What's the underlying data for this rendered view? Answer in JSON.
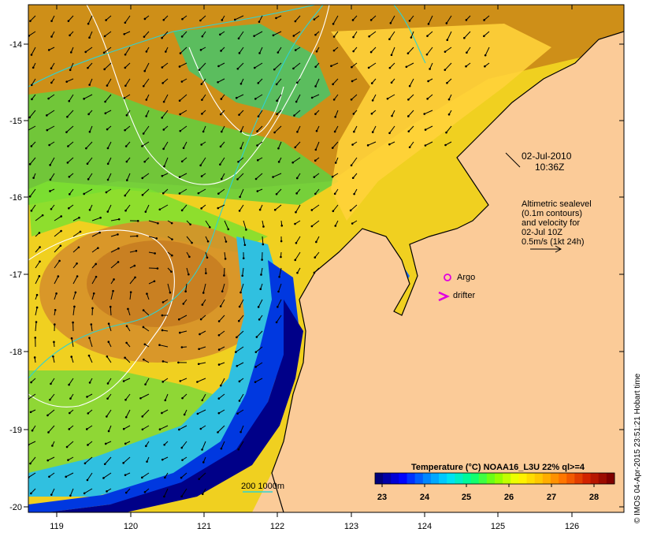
{
  "map": {
    "lon_ticks": [
      "119",
      "120",
      "121",
      "122",
      "123",
      "124",
      "125",
      "126"
    ],
    "lat_ticks": [
      "-14",
      "-15",
      "-16",
      "-17",
      "-18",
      "-19",
      "-20"
    ],
    "timestamp": {
      "date": "02-Jul-2010",
      "time": "10:36Z"
    },
    "legend_text": [
      "Altimetric sealevel",
      "(0.1m contours)",
      "and velocity for",
      "02-Jul 10Z",
      "0.5m/s (1kt 24h)"
    ],
    "markers": {
      "argo": "Argo",
      "drifter": "drifter"
    },
    "bathymetry_label": "200  1000m",
    "colorbar": {
      "title": "Temperature (°C) NOAA16_L3U 22% ql>=4",
      "labels": [
        "23",
        "24",
        "25",
        "26",
        "27",
        "28"
      ],
      "colors": [
        "#00007a",
        "#0000ff",
        "#0080ff",
        "#00e0ff",
        "#00ff80",
        "#80ff00",
        "#ffff00",
        "#ffc000",
        "#ff7000",
        "#d02000",
        "#800000"
      ]
    },
    "credit": "© IMOS 04-Apr-2015 23:51:21 Hobart time",
    "land_color": "#fbcb98",
    "contour_color": "#ffffff",
    "isobath_color": "#2ed3d3",
    "marker_color": "#e000e0"
  }
}
